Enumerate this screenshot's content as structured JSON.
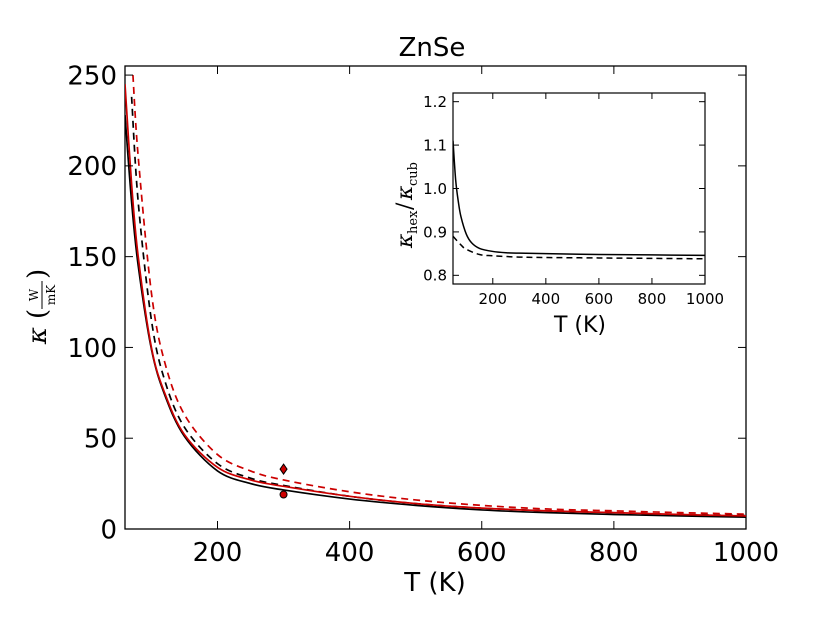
{
  "chart_data": [
    {
      "type": "line",
      "title": "ZnSe",
      "xlabel": "T (K)",
      "ylabel": "κ(W/mK)",
      "xlim": [
        60,
        1000
      ],
      "ylim": [
        0,
        255
      ],
      "xticks": [
        200,
        400,
        600,
        800,
        1000
      ],
      "yticks": [
        0,
        50,
        100,
        150,
        200,
        250
      ],
      "grid": false,
      "series": [
        {
          "color": "#000000",
          "style": "solid",
          "x": [
            60,
            70,
            80,
            100,
            120,
            150,
            200,
            250,
            300,
            400,
            500,
            600,
            700,
            800,
            900,
            1000
          ],
          "y": [
            228,
            180,
            145,
            99,
            74,
            51,
            32,
            25,
            21.5,
            16.5,
            13,
            10.5,
            9,
            8,
            7.2,
            6.5
          ]
        },
        {
          "color": "#000000",
          "style": "dashed",
          "x": [
            70,
            80,
            100,
            120,
            150,
            200,
            250,
            300,
            400,
            500,
            600,
            700,
            800,
            900,
            1000
          ],
          "y": [
            238,
            180,
            115,
            82,
            56,
            36,
            28,
            24,
            18,
            14,
            11.5,
            10,
            9,
            8,
            7.5
          ]
        },
        {
          "color": "#cc0000",
          "style": "solid",
          "x": [
            60,
            70,
            80,
            100,
            120,
            150,
            200,
            250,
            300,
            400,
            500,
            600,
            700,
            800,
            900,
            1000
          ],
          "y": [
            245,
            190,
            150,
            100,
            75,
            52,
            34,
            27,
            23.5,
            18,
            14,
            11.5,
            10,
            9,
            8,
            7.2
          ]
        },
        {
          "color": "#cc0000",
          "style": "dashed",
          "x": [
            72,
            80,
            100,
            120,
            150,
            200,
            250,
            300,
            400,
            500,
            600,
            700,
            800,
            900,
            1000
          ],
          "y": [
            250,
            205,
            130,
            92,
            63,
            41,
            32,
            27,
            20.5,
            16,
            13,
            11,
            10,
            9,
            8.2
          ]
        },
        {
          "color": "#cc0000",
          "style": "marker",
          "marker": "diamond",
          "x": [
            300
          ],
          "y": [
            33
          ]
        },
        {
          "color": "#cc0000",
          "style": "marker",
          "marker": "circle",
          "x": [
            300
          ],
          "y": [
            19
          ]
        }
      ]
    },
    {
      "type": "line",
      "title": "",
      "xlabel": "T (K)",
      "ylabel": "κhex/κcub",
      "xlim": [
        50,
        1000
      ],
      "ylim": [
        0.78,
        1.22
      ],
      "xticks": [
        200,
        400,
        600,
        800,
        1000
      ],
      "yticks": [
        0.8,
        0.9,
        1.0,
        1.1,
        1.2
      ],
      "xtick_labels": [
        "200",
        "400",
        "600",
        "800",
        "1000"
      ],
      "ytick_labels": [
        "0.8",
        "0.9",
        "1.0",
        "1.1",
        "1.2"
      ],
      "grid": false,
      "series": [
        {
          "color": "#000000",
          "style": "solid",
          "x": [
            50,
            60,
            70,
            80,
            100,
            120,
            150,
            200,
            250,
            300,
            400,
            600,
            800,
            1000
          ],
          "y": [
            1.11,
            1.02,
            0.97,
            0.935,
            0.895,
            0.875,
            0.862,
            0.855,
            0.852,
            0.851,
            0.85,
            0.848,
            0.847,
            0.846
          ]
        },
        {
          "color": "#000000",
          "style": "dashed",
          "x": [
            50,
            80,
            100,
            150,
            200,
            300,
            400,
            600,
            800,
            1000
          ],
          "y": [
            0.89,
            0.87,
            0.86,
            0.848,
            0.845,
            0.842,
            0.841,
            0.84,
            0.839,
            0.838
          ]
        }
      ]
    }
  ]
}
